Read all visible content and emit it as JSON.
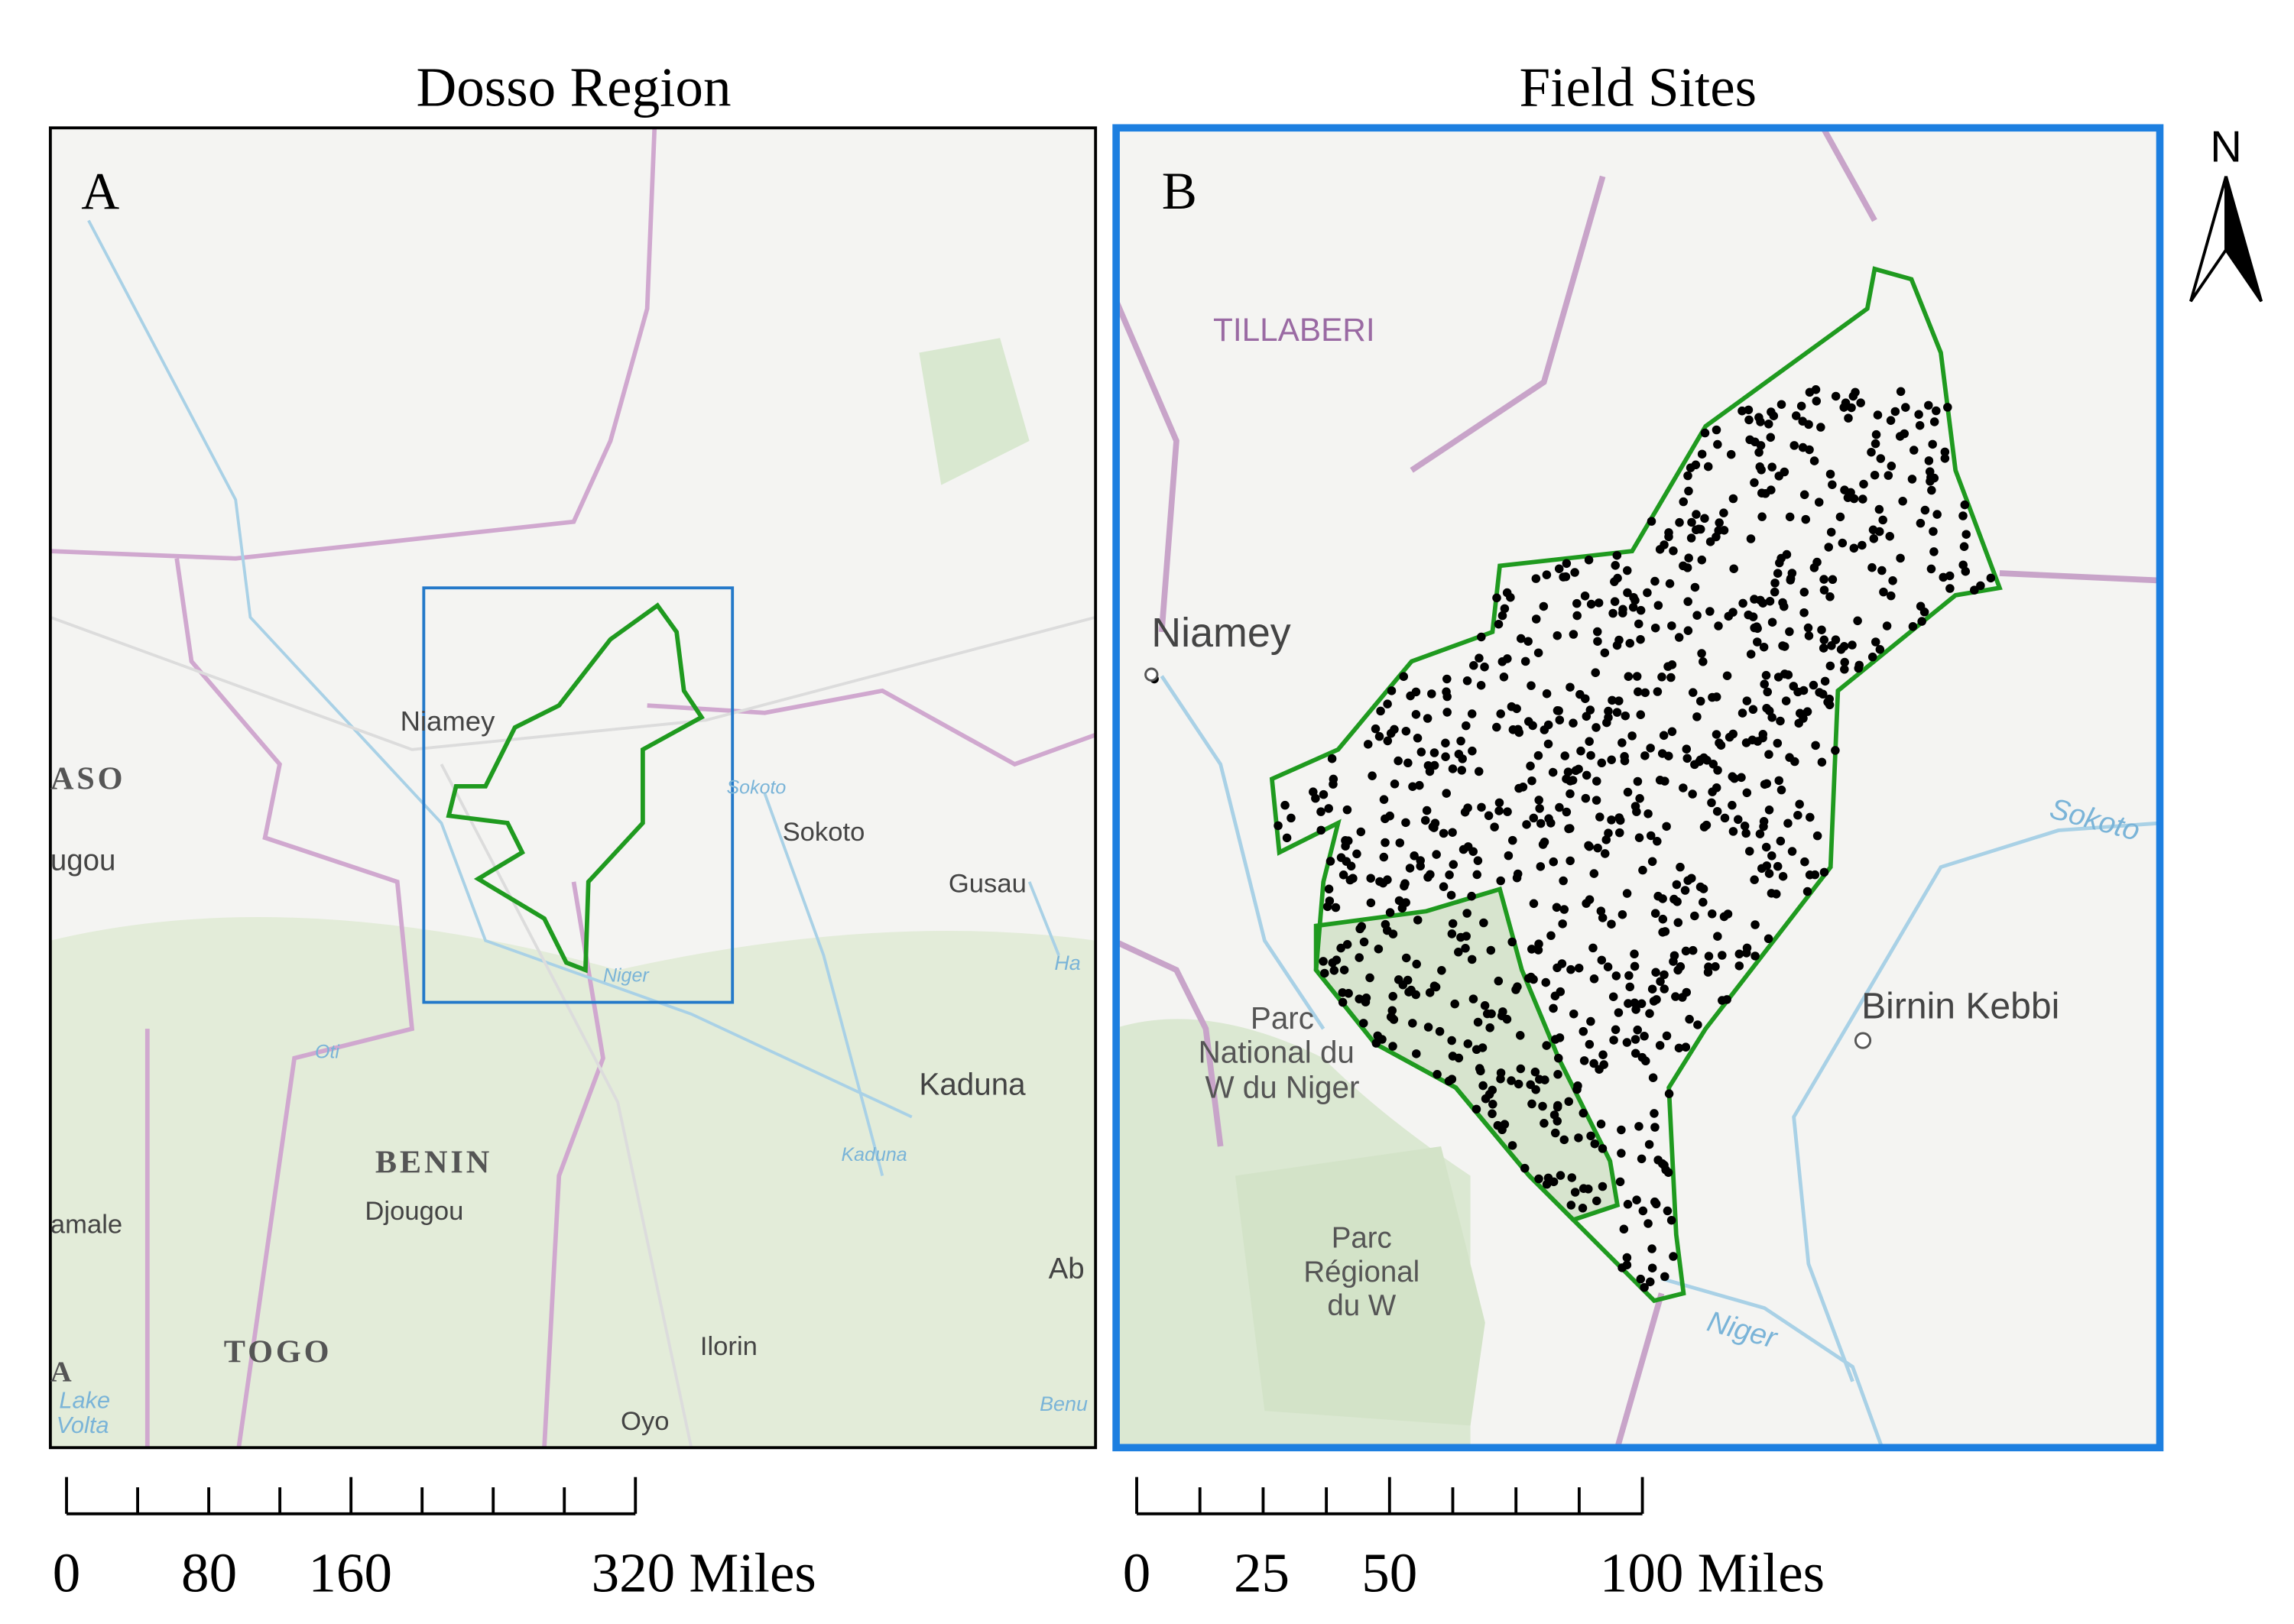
{
  "panels": [
    {
      "title": "Dosso Region",
      "letter": "A",
      "labels": [
        "Niamey",
        "ASO",
        "ugou",
        "Sokoto",
        "Sokoto",
        "Gusau",
        "Niger",
        "BENIN",
        "Djougou",
        "Kaduna",
        "Kaduna",
        "amale",
        "TOGO",
        "Ilorin",
        "Oyo",
        "A",
        "Lake",
        "Volta",
        "Ab",
        "Oti",
        "Benu",
        "Ha"
      ],
      "scale": [
        "0",
        "80",
        "160",
        "320 Miles"
      ]
    },
    {
      "title": "Field Sites",
      "letter": "B",
      "labels": [
        "TILLABERI",
        "Niamey",
        "Sokoto",
        "Birnin Kebbi",
        "Parc",
        "National du",
        "W du Niger",
        "Parc",
        "Régional",
        "du W",
        "Niger"
      ],
      "scale": [
        "0",
        "25",
        "50",
        "100 Miles"
      ]
    }
  ],
  "north": "N"
}
